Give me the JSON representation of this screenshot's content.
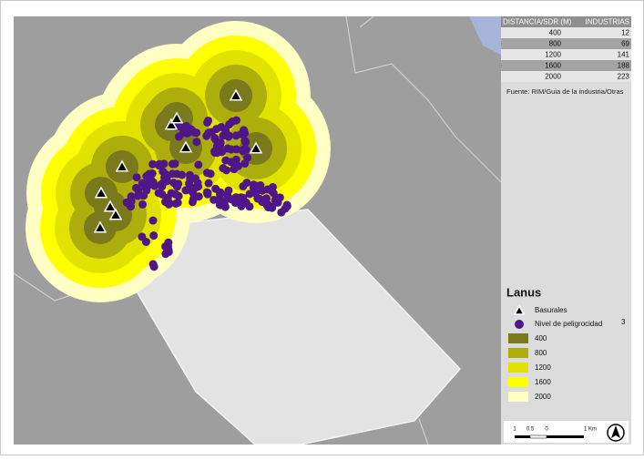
{
  "table": {
    "header": [
      "DISTANCIA/SDR (M)",
      "INDUSTRIAS"
    ],
    "rows": [
      [
        "400",
        "12"
      ],
      [
        "800",
        "69"
      ],
      [
        "1200",
        "141"
      ],
      [
        "1600",
        "188"
      ],
      [
        "2000",
        "223"
      ]
    ]
  },
  "source": "Fuente: RIM/Guia de la industria/Otras",
  "legend": {
    "title": "Lanus",
    "items": [
      {
        "label": "Basurales"
      },
      {
        "label": "Nivel de peligrocidad",
        "note": "3"
      }
    ],
    "buffers": [
      {
        "label": "400",
        "color": "#7a7a1c"
      },
      {
        "label": "800",
        "color": "#adad0c"
      },
      {
        "label": "1200",
        "color": "#e2e200"
      },
      {
        "label": "1600",
        "color": "#ffff00"
      },
      {
        "label": "2000",
        "color": "#ffffc4"
      }
    ]
  },
  "scale_bar": {
    "labels": [
      "1",
      "0.5",
      "0",
      "1 Km"
    ]
  }
}
